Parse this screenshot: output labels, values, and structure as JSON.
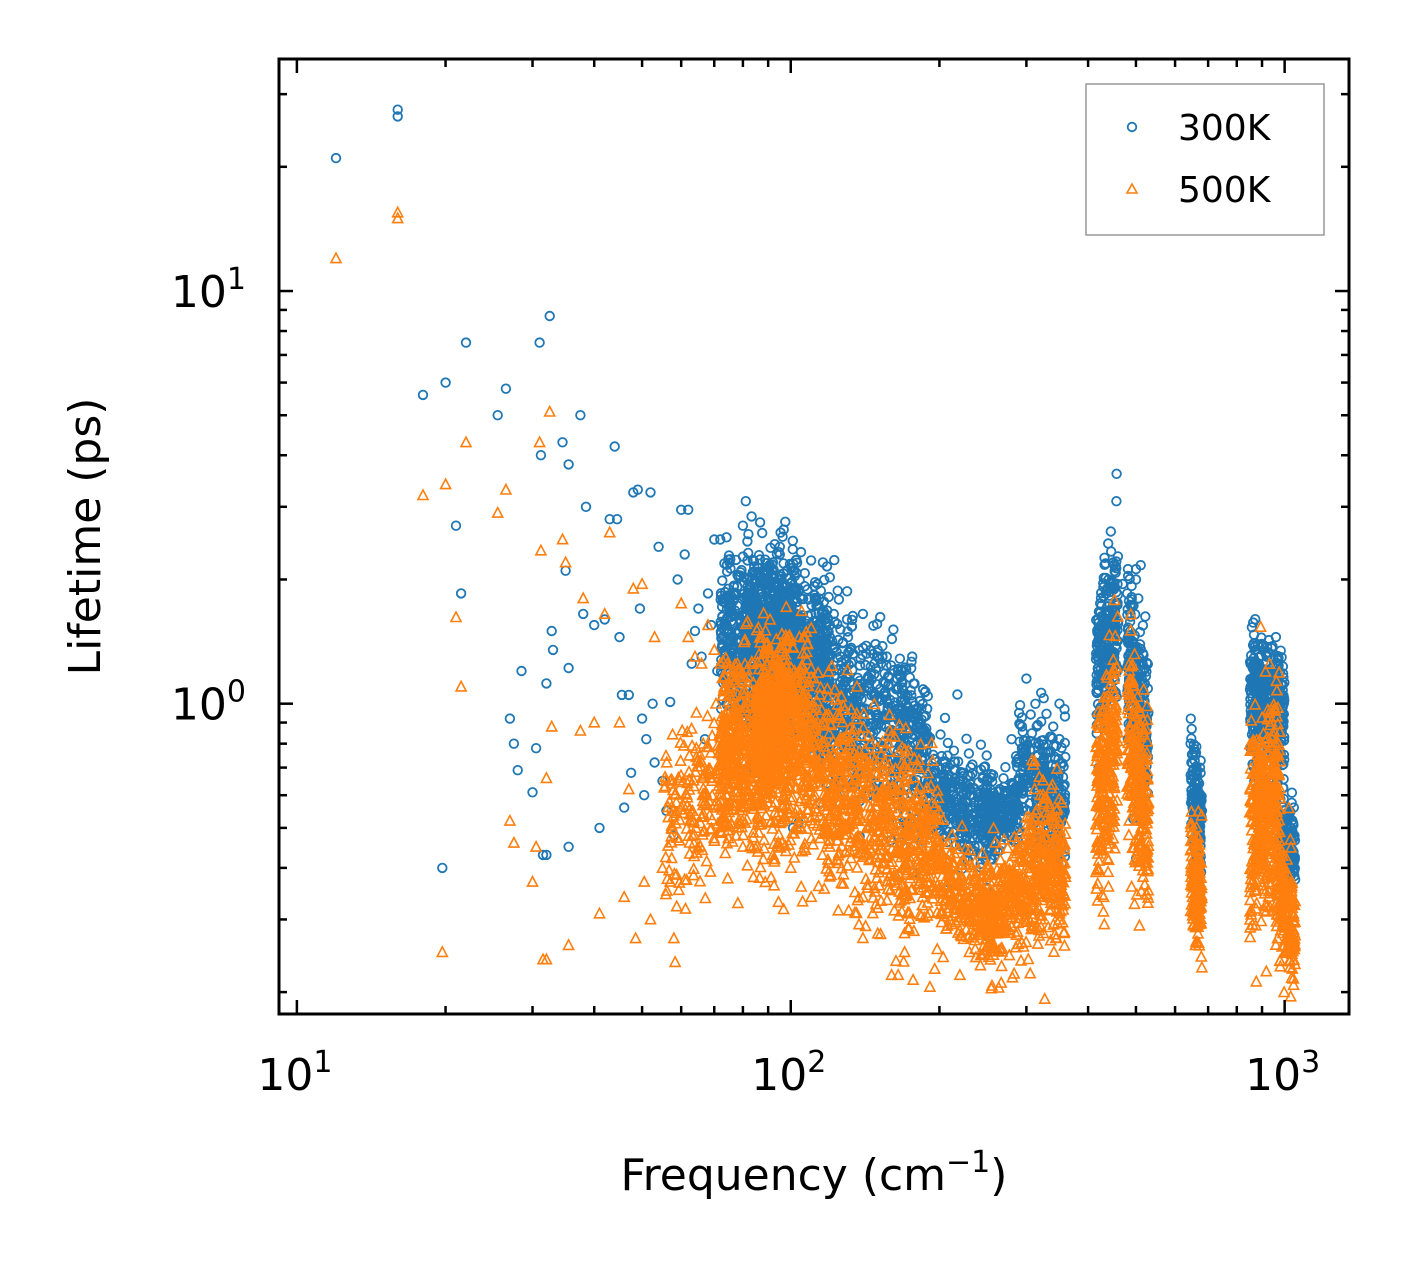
{
  "chart_data": {
    "type": "scatter",
    "xscale": "log",
    "yscale": "log",
    "xlim": [
      9.2,
      1350
    ],
    "ylim": [
      0.177,
      36.5
    ],
    "xlabel_main": "Frequency (cm",
    "xlabel_sup": "−1",
    "xlabel_end": ")",
    "ylabel": "Lifetime (ps)",
    "x_ticks": [
      {
        "base": "10",
        "exp": "1",
        "value": 10
      },
      {
        "base": "10",
        "exp": "2",
        "value": 100
      },
      {
        "base": "10",
        "exp": "3",
        "value": 1000
      }
    ],
    "y_ticks": [
      {
        "base": "10",
        "exp": "0",
        "value": 1
      },
      {
        "base": "10",
        "exp": "1",
        "value": 10
      }
    ],
    "legend": {
      "position": "top-right"
    },
    "series": [
      {
        "name": "300K",
        "marker": "circle",
        "color": "#1f77b4",
        "points": [
          [
            12.0,
            21.0
          ],
          [
            16.0,
            26.5
          ],
          [
            16.0,
            27.5
          ],
          [
            18.0,
            5.6
          ],
          [
            19.7,
            0.4
          ],
          [
            20.0,
            6.0
          ],
          [
            21.0,
            2.7
          ],
          [
            21.5,
            1.85
          ],
          [
            22.0,
            7.5
          ],
          [
            25.5,
            5.0
          ],
          [
            26.5,
            5.8
          ],
          [
            27.0,
            0.92
          ],
          [
            27.5,
            0.8
          ],
          [
            28.0,
            0.69
          ],
          [
            28.5,
            1.2
          ],
          [
            30.0,
            0.61
          ],
          [
            30.5,
            0.78
          ],
          [
            31.0,
            7.5
          ],
          [
            31.2,
            4.0
          ],
          [
            31.5,
            0.43
          ],
          [
            32.0,
            0.43
          ],
          [
            32.0,
            1.12
          ],
          [
            32.5,
            8.7
          ],
          [
            32.8,
            1.5
          ],
          [
            33.0,
            1.35
          ],
          [
            34.5,
            4.3
          ],
          [
            35.0,
            2.1
          ],
          [
            35.5,
            3.8
          ],
          [
            35.5,
            1.22
          ],
          [
            35.5,
            0.45
          ],
          [
            37.5,
            5.0
          ],
          [
            38.0,
            1.65
          ],
          [
            38.5,
            3.0
          ],
          [
            40.0,
            1.55
          ],
          [
            41.0,
            0.5
          ],
          [
            42.0,
            1.6
          ],
          [
            43.0,
            2.8
          ],
          [
            44.0,
            4.2
          ],
          [
            44.5,
            2.8
          ],
          [
            45.0,
            1.45
          ],
          [
            45.5,
            1.05
          ],
          [
            46.0,
            0.56
          ],
          [
            47.0,
            1.05
          ],
          [
            47.5,
            0.68
          ],
          [
            48.0,
            3.25
          ],
          [
            49.0,
            3.3
          ],
          [
            49.5,
            1.7
          ],
          [
            50.0,
            0.92
          ],
          [
            50.5,
            0.6
          ],
          [
            51.0,
            0.82
          ],
          [
            52.0,
            3.25
          ],
          [
            52.5,
            1.0
          ],
          [
            53.0,
            0.72
          ],
          [
            54.0,
            2.4
          ],
          [
            55.0,
            0.65
          ],
          [
            56.0,
            0.55
          ],
          [
            57.0,
            1.01
          ],
          [
            58.0,
            0.48
          ],
          [
            59.0,
            2.0
          ],
          [
            60.0,
            2.95
          ],
          [
            61.0,
            2.3
          ],
          [
            62.0,
            2.95
          ],
          [
            63.0,
            1.25
          ],
          [
            64.0,
            1.5
          ],
          [
            65.0,
            1.7
          ],
          [
            66.0,
            1.3
          ],
          [
            67.0,
            0.82
          ],
          [
            68.0,
            1.85
          ],
          [
            69.0,
            1.55
          ],
          [
            70.0,
            2.5
          ],
          [
            71.0,
            1.2
          ],
          [
            72.0,
            2.5
          ],
          [
            73.0,
            1.8
          ],
          [
            76.0,
            1.65
          ],
          [
            78.0,
            2.05
          ],
          [
            80.0,
            2.7
          ],
          [
            82.0,
            1.45
          ],
          [
            85.0,
            1.75
          ],
          [
            88.0,
            2.1
          ],
          [
            92.0,
            2.2
          ],
          [
            95.0,
            2.4
          ],
          [
            100.0,
            1.85
          ],
          [
            105.0,
            1.6
          ],
          [
            110.0,
            1.5
          ],
          [
            120.0,
            1.55
          ],
          [
            130.0,
            1.6
          ],
          [
            140.0,
            1.65
          ],
          [
            150.0,
            1.35
          ],
          [
            165.0,
            1.2
          ],
          [
            180.0,
            0.95
          ],
          [
            190.0,
            0.82
          ],
          [
            200.0,
            0.7
          ],
          [
            220.0,
            0.65
          ],
          [
            250.0,
            0.55
          ],
          [
            280.0,
            0.82
          ],
          [
            290.0,
            0.95
          ],
          [
            300.0,
            1.15
          ],
          [
            320.0,
            0.7
          ],
          [
            340.0,
            0.88
          ],
          [
            350.0,
            1.0
          ],
          [
            420.0,
            0.7
          ],
          [
            450.0,
            2.2
          ],
          [
            470.0,
            1.95
          ],
          [
            480.0,
            1.85
          ],
          [
            500.0,
            2.0
          ],
          [
            500.0,
            0.42
          ],
          [
            520.0,
            0.9
          ],
          [
            660.0,
            0.75
          ],
          [
            680.0,
            0.55
          ],
          [
            870.0,
            1.25
          ],
          [
            920.0,
            1.3
          ],
          [
            960.0,
            1.45
          ],
          [
            1000.0,
            0.55
          ],
          [
            1030.0,
            0.4
          ]
        ],
        "clusters": [
          {
            "x": [
              72,
              120
            ],
            "y_center": [
              1.45,
              1.25
            ],
            "spread": 0.1,
            "n": 900
          },
          {
            "x": [
              80,
              105
            ],
            "y_center": [
              1.65,
              1.55
            ],
            "spread": 0.08,
            "n": 400
          },
          {
            "x": [
              110,
              190
            ],
            "y_center": [
              1.15,
              0.78
            ],
            "spread": 0.1,
            "n": 700
          },
          {
            "x": [
              190,
              260
            ],
            "y_center": [
              0.62,
              0.52
            ],
            "spread": 0.07,
            "n": 300
          },
          {
            "x": [
              240,
              290
            ],
            "y_center": [
              0.52,
              0.55
            ],
            "spread": 0.04,
            "n": 200
          },
          {
            "x": [
              285,
              360
            ],
            "y_center": [
              0.68,
              0.58
            ],
            "spread": 0.08,
            "n": 300
          },
          {
            "x": [
              415,
              460
            ],
            "y_center": [
              1.2,
              1.75
            ],
            "spread": 0.1,
            "n": 250
          },
          {
            "x": [
              480,
              530
            ],
            "y_center": [
              1.25,
              0.8
            ],
            "spread": 0.1,
            "n": 250
          },
          {
            "x": [
              645,
              680
            ],
            "y_center": [
              0.65,
              0.5
            ],
            "spread": 0.07,
            "n": 150
          },
          {
            "x": [
              850,
              1000
            ],
            "y_center": [
              1.05,
              0.9
            ],
            "spread": 0.08,
            "n": 400
          },
          {
            "x": [
              980,
              1050
            ],
            "y_center": [
              0.48,
              0.42
            ],
            "spread": 0.05,
            "n": 150
          }
        ]
      },
      {
        "name": "500K",
        "marker": "triangle",
        "color": "#ff7f0e",
        "points": [
          [
            12.0,
            12.0
          ],
          [
            16.0,
            15.5
          ],
          [
            16.0,
            15.0
          ],
          [
            18.0,
            3.2
          ],
          [
            19.7,
            0.25
          ],
          [
            20.0,
            3.4
          ],
          [
            21.0,
            1.62
          ],
          [
            21.5,
            1.1
          ],
          [
            22.0,
            4.3
          ],
          [
            25.5,
            2.9
          ],
          [
            26.5,
            3.3
          ],
          [
            27.0,
            0.52
          ],
          [
            27.5,
            0.46
          ],
          [
            30.0,
            0.37
          ],
          [
            30.5,
            0.45
          ],
          [
            31.0,
            4.3
          ],
          [
            31.2,
            2.35
          ],
          [
            31.5,
            0.24
          ],
          [
            32.0,
            0.24
          ],
          [
            32.0,
            0.66
          ],
          [
            32.5,
            5.1
          ],
          [
            32.8,
            0.88
          ],
          [
            34.5,
            2.5
          ],
          [
            35.0,
            2.2
          ],
          [
            35.5,
            0.26
          ],
          [
            37.5,
            0.86
          ],
          [
            38.0,
            1.8
          ],
          [
            40.0,
            0.9
          ],
          [
            41.0,
            0.31
          ],
          [
            42.0,
            1.65
          ],
          [
            43.0,
            2.6
          ],
          [
            45.0,
            0.9
          ],
          [
            46.0,
            0.34
          ],
          [
            47.0,
            0.62
          ],
          [
            48.0,
            1.9
          ],
          [
            48.5,
            0.27
          ],
          [
            50.0,
            1.95
          ],
          [
            50.5,
            0.37
          ],
          [
            52.0,
            0.3
          ],
          [
            53.0,
            1.45
          ],
          [
            55.0,
            0.4
          ],
          [
            57.0,
            0.37
          ],
          [
            58.0,
            0.27
          ],
          [
            60.0,
            1.75
          ],
          [
            62.0,
            1.45
          ],
          [
            64.0,
            1.3
          ],
          [
            66.0,
            1.25
          ],
          [
            68.0,
            1.55
          ],
          [
            70.0,
            1.35
          ],
          [
            72.0,
            1.25
          ],
          [
            75.0,
            1.1
          ],
          [
            78.0,
            1.25
          ],
          [
            80.0,
            0.45
          ],
          [
            84.0,
            0.38
          ],
          [
            88.0,
            0.42
          ],
          [
            92.0,
            0.43
          ],
          [
            96.0,
            0.46
          ],
          [
            100.0,
            0.4
          ],
          [
            105.0,
            0.36
          ],
          [
            110.0,
            0.34
          ],
          [
            120.0,
            0.45
          ],
          [
            140.0,
            0.34
          ],
          [
            150.0,
            0.32
          ],
          [
            160.0,
            0.22
          ],
          [
            165.0,
            0.22
          ],
          [
            170.0,
            0.25
          ],
          [
            180.0,
            0.42
          ],
          [
            200.0,
            0.35
          ],
          [
            210.0,
            0.3
          ],
          [
            220.0,
            0.22
          ],
          [
            230.0,
            0.25
          ],
          [
            250.0,
            0.26
          ],
          [
            260.0,
            0.28
          ],
          [
            320.0,
            0.6
          ],
          [
            350.0,
            0.31
          ],
          [
            430.0,
            0.34
          ],
          [
            440.0,
            0.36
          ],
          [
            450.0,
            0.95
          ],
          [
            490.0,
            0.36
          ],
          [
            510.0,
            0.95
          ],
          [
            660.0,
            0.26
          ],
          [
            930.0,
            0.95
          ],
          [
            1000.0,
            0.26
          ],
          [
            1020.0,
            0.25
          ]
        ],
        "clusters": [
          {
            "x": [
              55,
              75
            ],
            "y_center": [
              0.5,
              0.62
            ],
            "spread": 0.1,
            "n": 200
          },
          {
            "x": [
              72,
              110
            ],
            "y_center": [
              0.72,
              0.82
            ],
            "spread": 0.12,
            "n": 900
          },
          {
            "x": [
              85,
              100
            ],
            "y_center": [
              0.95,
              1.0
            ],
            "spread": 0.08,
            "n": 300
          },
          {
            "x": [
              110,
              200
            ],
            "y_center": [
              0.7,
              0.42
            ],
            "spread": 0.11,
            "n": 800
          },
          {
            "x": [
              200,
              260
            ],
            "y_center": [
              0.38,
              0.3
            ],
            "spread": 0.06,
            "n": 250
          },
          {
            "x": [
              240,
              300
            ],
            "y_center": [
              0.3,
              0.36
            ],
            "spread": 0.07,
            "n": 250
          },
          {
            "x": [
              300,
              360
            ],
            "y_center": [
              0.42,
              0.38
            ],
            "spread": 0.09,
            "n": 300
          },
          {
            "x": [
              415,
              460
            ],
            "y_center": [
              0.55,
              0.85
            ],
            "spread": 0.12,
            "n": 250
          },
          {
            "x": [
              480,
              530
            ],
            "y_center": [
              0.85,
              0.5
            ],
            "spread": 0.12,
            "n": 250
          },
          {
            "x": [
              645,
              680
            ],
            "y_center": [
              0.4,
              0.32
            ],
            "spread": 0.08,
            "n": 150
          },
          {
            "x": [
              850,
              980
            ],
            "y_center": [
              0.5,
              0.62
            ],
            "spread": 0.12,
            "n": 400
          },
          {
            "x": [
              960,
              1050
            ],
            "y_center": [
              0.36,
              0.28
            ],
            "spread": 0.07,
            "n": 200
          }
        ]
      }
    ]
  }
}
